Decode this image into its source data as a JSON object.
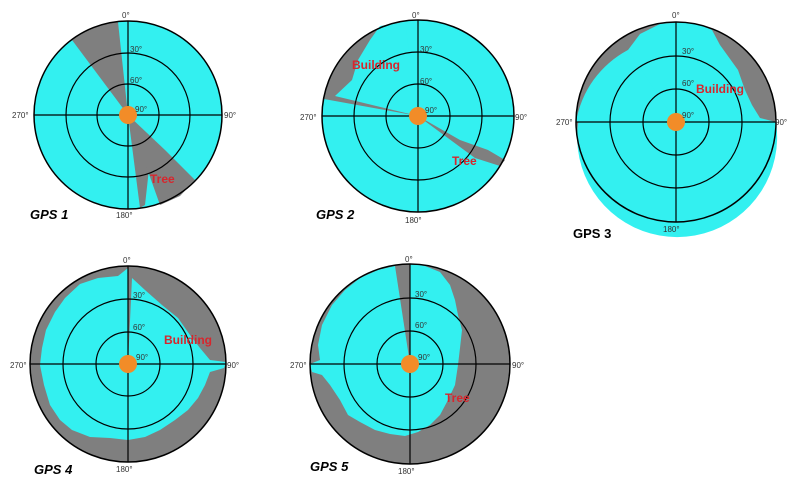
{
  "colors": {
    "sky_visible": "#33f0f0",
    "obstructed": "#7f7f7f",
    "receiver": "#f28c28",
    "label": "#d7262d",
    "grid": "#000000"
  },
  "elevation_rings": [
    "30°",
    "60°",
    "90°"
  ],
  "azimuth_labels": {
    "north": "0°",
    "east": "90°",
    "south": "180°",
    "west": "270°"
  },
  "panels": [
    {
      "label": "GPS 1",
      "obstacles": [
        {
          "name": "Tree"
        }
      ]
    },
    {
      "label": "GPS 2",
      "obstacles": [
        {
          "name": "Building"
        },
        {
          "name": "Tree"
        }
      ]
    },
    {
      "label": "GPS 3",
      "obstacles": [
        {
          "name": "Building"
        }
      ]
    },
    {
      "label": "GPS 4",
      "obstacles": [
        {
          "name": "Building"
        }
      ]
    },
    {
      "label": "GPS 5",
      "obstacles": [
        {
          "name": "Tree"
        }
      ]
    }
  ]
}
